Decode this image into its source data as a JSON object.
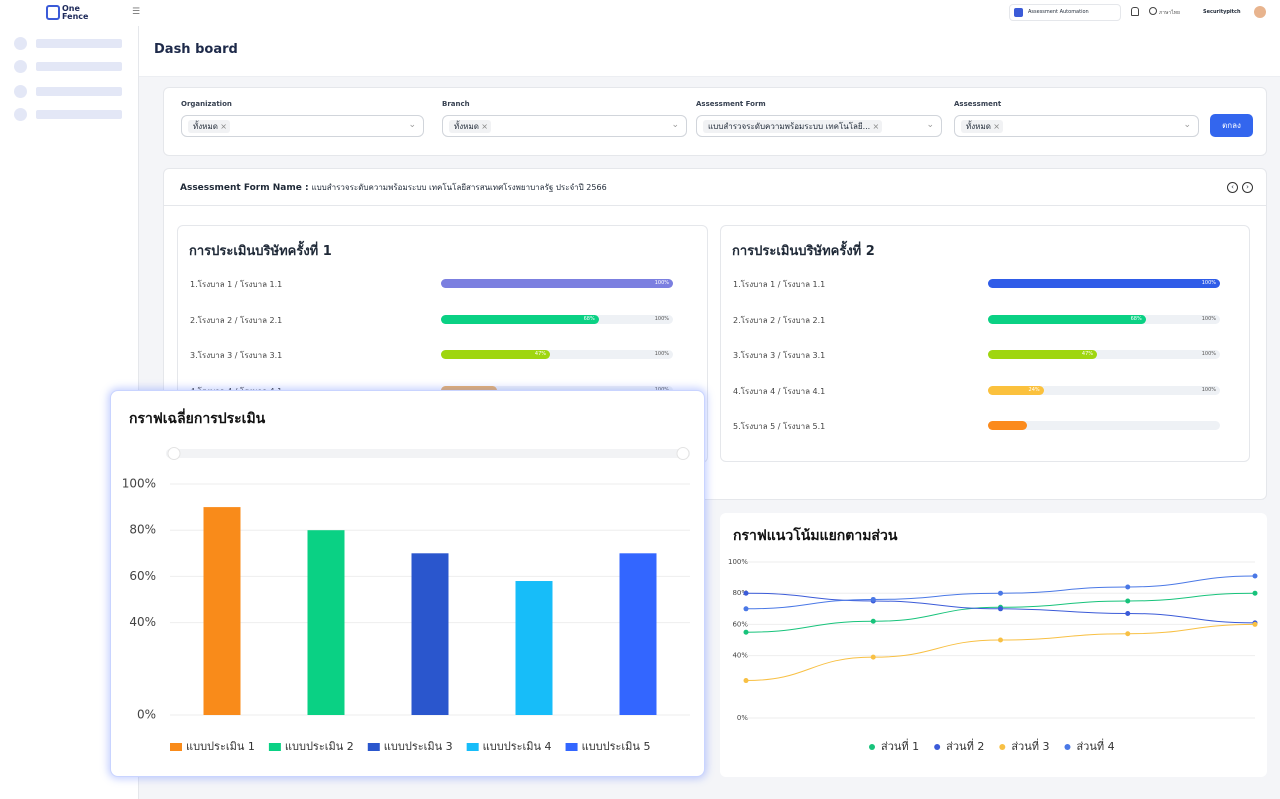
{
  "header": {
    "logo_line1": "One",
    "logo_line2": "Fence",
    "app_selector": "Assessment Automation",
    "language": "ภาษาไทย",
    "user": "Securitypitch"
  },
  "page_title": "Dash board",
  "filters": [
    {
      "label": "Organization",
      "chip": "ทั้งหมด"
    },
    {
      "label": "Branch",
      "chip": "ทั้งหมด"
    },
    {
      "label": "Assessment Form",
      "chip": "แบบสำรวจระดับความพร้อมระบบ เทคโนโลยี..."
    },
    {
      "label": "Assessment",
      "chip": "ทั้งหมด"
    }
  ],
  "submit_button": "ตกลง",
  "form_name": {
    "label": "Assessment Form Name :",
    "value": "แบบสำรวจระดับความพร้อมระบบ เทคโนโลยีสารสนเทศโรงพยาบาลรัฐ ประจำปี 2566"
  },
  "panels": [
    {
      "title": "การประเมินบริษัทครั้งที่ 1",
      "rows": [
        {
          "label": "1.โรงบาล 1 / โรงบาล 1.1",
          "value": 100,
          "value_label": "100%",
          "color": "#7b7fe0"
        },
        {
          "label": "2.โรงบาล 2 / โรงบาล 2.1",
          "value": 68,
          "value_label": "68%",
          "max_label": "100%",
          "color": "#0ad184"
        },
        {
          "label": "3.โรงบาล 3 / โรงบาล 3.1",
          "value": 47,
          "value_label": "47%",
          "max_label": "100%",
          "color": "#9fd60f"
        },
        {
          "label": "4.โรงบาล 4 / โรงบาล 4.1",
          "value": 24,
          "max_label": "100%",
          "color": "#e8b06a"
        }
      ]
    },
    {
      "title": "การประเมินบริษัทครั้งที่ 2",
      "rows": [
        {
          "label": "1.โรงบาล 1 / โรงบาล 1.1",
          "value": 100,
          "value_label": "100%",
          "color": "#2f5ce8"
        },
        {
          "label": "2.โรงบาล 2 / โรงบาล 2.1",
          "value": 68,
          "value_label": "68%",
          "max_label": "100%",
          "color": "#0ad184"
        },
        {
          "label": "3.โรงบาล 3 / โรงบาล 3.1",
          "value": 47,
          "value_label": "47%",
          "max_label": "100%",
          "color": "#9fd60f"
        },
        {
          "label": "4.โรงบาล 4 / โรงบาล 4.1",
          "value": 24,
          "value_label": "24%",
          "max_label": "100%",
          "color": "#fbc13d"
        },
        {
          "label": "5.โรงบาล 5 / โรงบาล 5.1",
          "value": 17,
          "color": "#fb8a1c"
        }
      ]
    }
  ],
  "chart_data": [
    {
      "type": "bar",
      "title": "กราฟเฉลี่ยการประเมิน",
      "categories": [
        "แบบประเมิน 1",
        "แบบประเมิน 2",
        "แบบประเมิน 3",
        "แบบประเมิน 4",
        "แบบประเมิน 5"
      ],
      "values": [
        90,
        80,
        70,
        58,
        70
      ],
      "colors": [
        "#f98b1a",
        "#0ad184",
        "#2a56cd",
        "#17bdf9",
        "#3366ff"
      ],
      "ylim": [
        0,
        100
      ],
      "yticks": [
        {
          "value": 0,
          "label": "0%"
        },
        {
          "value": 40,
          "label": "40%"
        },
        {
          "value": 60,
          "label": "60%"
        },
        {
          "value": 80,
          "label": "80%"
        },
        {
          "value": 100,
          "label": "100%"
        }
      ],
      "grid": true,
      "legend": "bottom"
    },
    {
      "type": "line",
      "title": "กราฟแนวโน้มแยกตามส่วน",
      "categories": [
        null,
        null,
        null,
        null,
        null
      ],
      "series": [
        {
          "name": "ส่วนที่ 1",
          "color": "#17c37b",
          "values": [
            55,
            62,
            71,
            75,
            80
          ]
        },
        {
          "name": "ส่วนที่ 2",
          "color": "#3b5bd8",
          "values": [
            80,
            75,
            70,
            67,
            61
          ]
        },
        {
          "name": "ส่วนที่ 3",
          "color": "#f8c044",
          "values": [
            24,
            39,
            50,
            54,
            60
          ]
        },
        {
          "name": "ส่วนที่ 4",
          "color": "#4a78e6",
          "values": [
            70,
            76,
            80,
            84,
            91
          ]
        }
      ],
      "ylim": [
        0,
        100
      ],
      "yticks": [
        {
          "value": 0,
          "label": "0%"
        },
        {
          "value": 40,
          "label": "40%"
        },
        {
          "value": 60,
          "label": "60%"
        },
        {
          "value": 80,
          "label": "80%"
        },
        {
          "value": 100,
          "label": "100%"
        }
      ],
      "grid": true,
      "legend": "bottom"
    }
  ]
}
